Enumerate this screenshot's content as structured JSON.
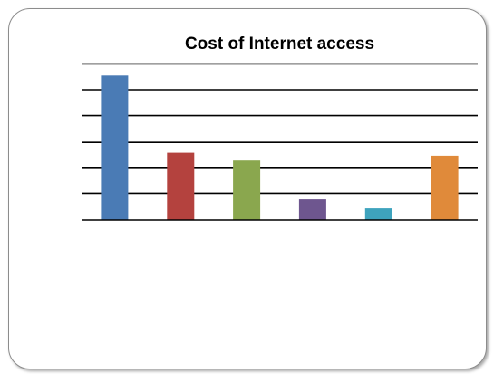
{
  "chart_data": {
    "type": "bar",
    "title": "Cost of Internet access",
    "xlabel": "",
    "ylabel": "",
    "ylim": [
      0,
      6
    ],
    "gridlines": [
      1,
      2,
      3,
      4,
      5,
      6
    ],
    "grid": true,
    "categories": [
      "",
      "",
      "",
      "",
      "",
      ""
    ],
    "values": [
      5.55,
      2.6,
      2.3,
      0.8,
      0.45,
      2.45
    ],
    "colors": [
      "#4a7bb5",
      "#b4423e",
      "#8aa74e",
      "#6e568f",
      "#3ea3bd",
      "#e08a3a"
    ]
  }
}
